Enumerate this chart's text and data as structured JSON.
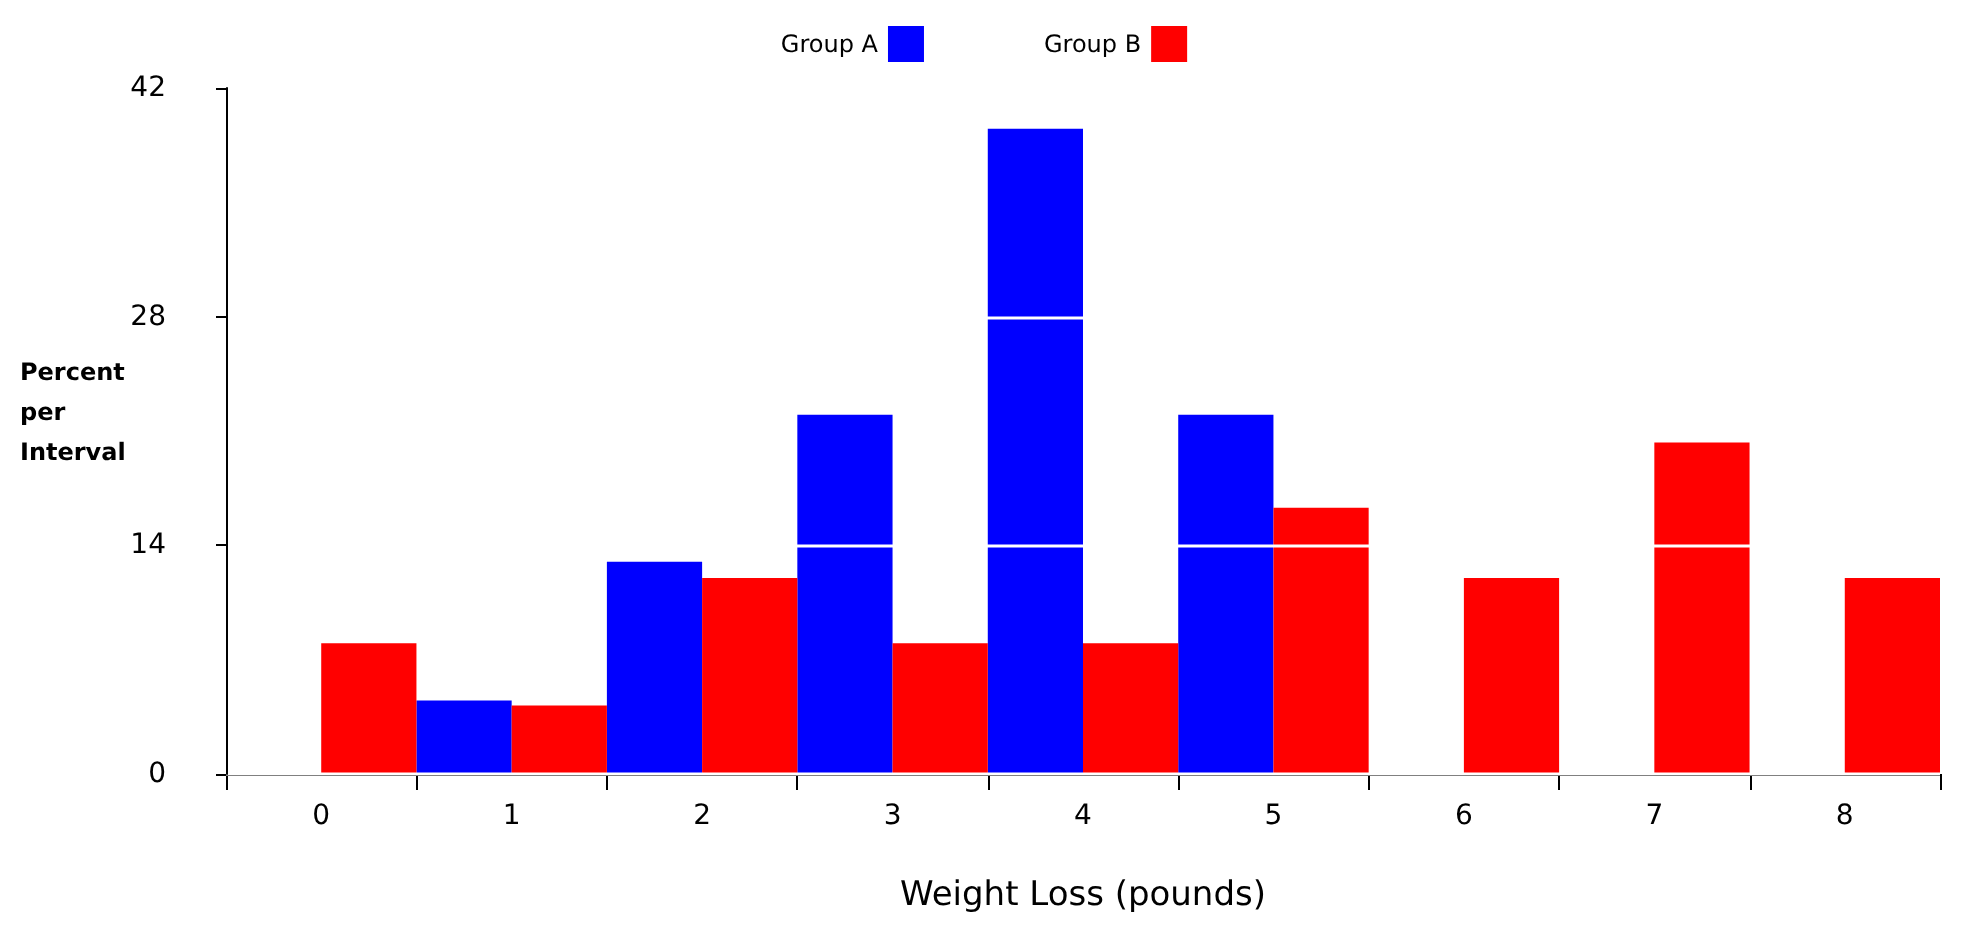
{
  "chart_data": {
    "type": "bar",
    "xlabel": "Weight Loss (pounds)",
    "ylabel": "Percent\nper\nInterval",
    "categories": [
      "0",
      "1",
      "2",
      "3",
      "4",
      "5",
      "6",
      "7",
      "8"
    ],
    "series": [
      {
        "name": "Group A",
        "color": "#0000ff",
        "values": [
          0,
          4.5,
          13,
          22,
          39.5,
          22,
          0,
          0,
          0
        ]
      },
      {
        "name": "Group B",
        "color": "#ff0000",
        "values": [
          8,
          4.2,
          12,
          8,
          8,
          16.3,
          12,
          20.3,
          12
        ]
      }
    ],
    "ylim": [
      0,
      42
    ],
    "yticks": [
      0,
      14,
      28,
      42
    ],
    "grid": "y",
    "legend": "top"
  }
}
